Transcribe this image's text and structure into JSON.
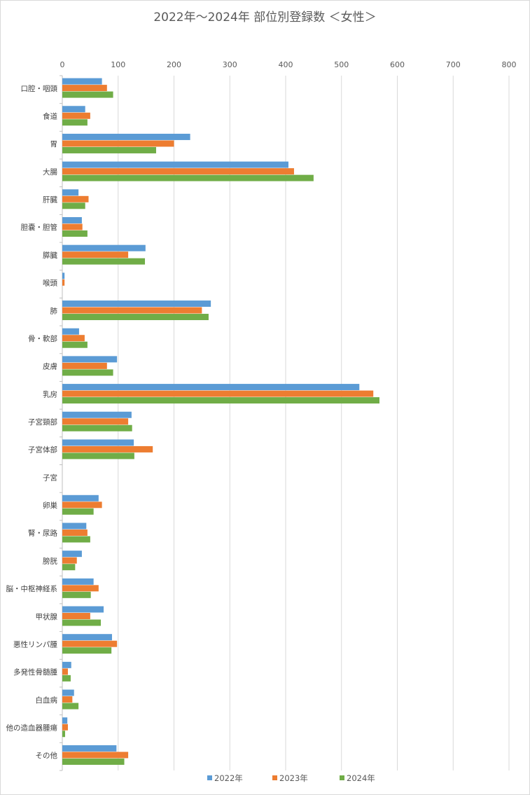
{
  "chart_data": {
    "type": "bar",
    "orientation": "horizontal",
    "title": "2022年～2024年  部位別登録数  ＜女性＞",
    "xlim": [
      0,
      800
    ],
    "xticks": [
      0,
      100,
      200,
      300,
      400,
      500,
      600,
      700,
      800
    ],
    "grid": true,
    "legend_position": "bottom",
    "categories": [
      "口腔・咽頭",
      "食道",
      "胃",
      "大腸",
      "肝臓",
      "胆嚢・胆管",
      "膵臓",
      "喉頭",
      "肺",
      "骨・軟部",
      "皮膚",
      "乳房",
      "子宮頸部",
      "子宮体部",
      "子宮",
      "卵巣",
      "腎・尿路",
      "膀胱",
      "脳・中枢神経系",
      "甲状腺",
      "悪性リンパ腫",
      "多発性骨髄腫",
      "白血病",
      "他の造血器腫瘍",
      "その他"
    ],
    "series": [
      {
        "name": "2022年",
        "color": "#5b9bd5",
        "values": [
          71,
          41,
          229,
          405,
          29,
          35,
          149,
          4,
          266,
          30,
          98,
          532,
          124,
          128,
          0,
          65,
          43,
          35,
          56,
          74,
          89,
          16,
          21,
          9,
          97
        ]
      },
      {
        "name": "2023年",
        "color": "#ed7d31",
        "values": [
          80,
          50,
          200,
          415,
          47,
          36,
          118,
          4,
          250,
          40,
          80,
          557,
          118,
          162,
          0,
          71,
          45,
          26,
          65,
          50,
          98,
          10,
          18,
          10,
          118
        ]
      },
      {
        "name": "2024年",
        "color": "#70ad47",
        "values": [
          91,
          45,
          168,
          450,
          41,
          45,
          148,
          0,
          262,
          45,
          91,
          568,
          125,
          129,
          0,
          56,
          50,
          23,
          51,
          69,
          88,
          15,
          29,
          5,
          111
        ]
      }
    ]
  }
}
